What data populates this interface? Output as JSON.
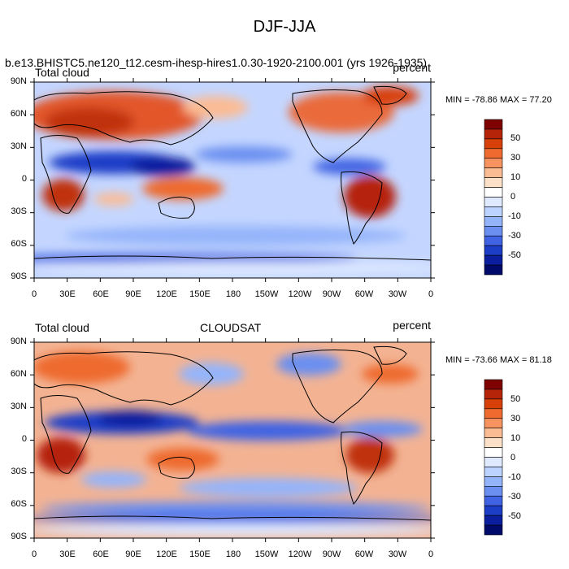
{
  "figure": {
    "title": "DJF-JJA"
  },
  "lat_labels": [
    "90N",
    "60N",
    "30N",
    "0",
    "30S",
    "60S",
    "90S"
  ],
  "lon_labels": [
    "0",
    "30E",
    "60E",
    "90E",
    "120E",
    "150E",
    "180",
    "150W",
    "120W",
    "90W",
    "60W",
    "30W",
    "0"
  ],
  "colorbar": {
    "labels": [
      "50",
      "30",
      "10",
      "0",
      "-10",
      "-30",
      "-50"
    ],
    "colors": [
      "#7f0000",
      "#b52408",
      "#d8400a",
      "#ee6a2e",
      "#f7935f",
      "#fbbc94",
      "#fde0c8",
      "#ffffff",
      "#dfe9ff",
      "#bcd2ff",
      "#94b4fa",
      "#6b8ff0",
      "#3f63e3",
      "#1c3ec7",
      "#0b1f9e",
      "#000a6b"
    ]
  },
  "panels": [
    {
      "left_label": "Total cloud",
      "case_label": "b.e13.BHISTC5.ne120_t12.cesm-ihesp-hires1.0.30-1920-2100.001 (yrs 1926-1935)",
      "center_label": "",
      "right_label": "percent",
      "stats": "MIN = -78.86 MAX =  77.20"
    },
    {
      "left_label": "Total cloud",
      "case_label": "",
      "center_label": "CLOUDSAT",
      "right_label": "percent",
      "stats": "MIN = -73.66 MAX =  81.18"
    }
  ]
}
